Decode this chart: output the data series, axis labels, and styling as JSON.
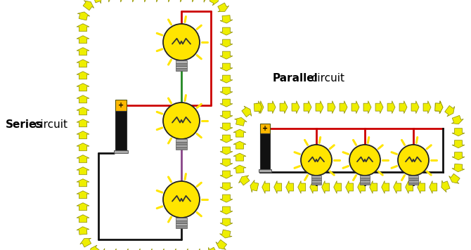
{
  "bg_color": "#ffffff",
  "series_label_bold": "Series",
  "series_label_normal": " circuit",
  "parallel_label_bold": "Parallel",
  "parallel_label_normal": " circuit",
  "wire_red": "#cc0000",
  "wire_black": "#111111",
  "wire_green": "#228822",
  "wire_purple": "#884488",
  "bulb_fill": "#FFE500",
  "bulb_edge": "#222222",
  "battery_gold": "#FFB800",
  "battery_black": "#111111",
  "battery_gray": "#aaaaaa",
  "arrow_fill": "#EEEE00",
  "arrow_edge": "#888800",
  "base_fill": "#aaaaaa",
  "base_edge": "#555555"
}
